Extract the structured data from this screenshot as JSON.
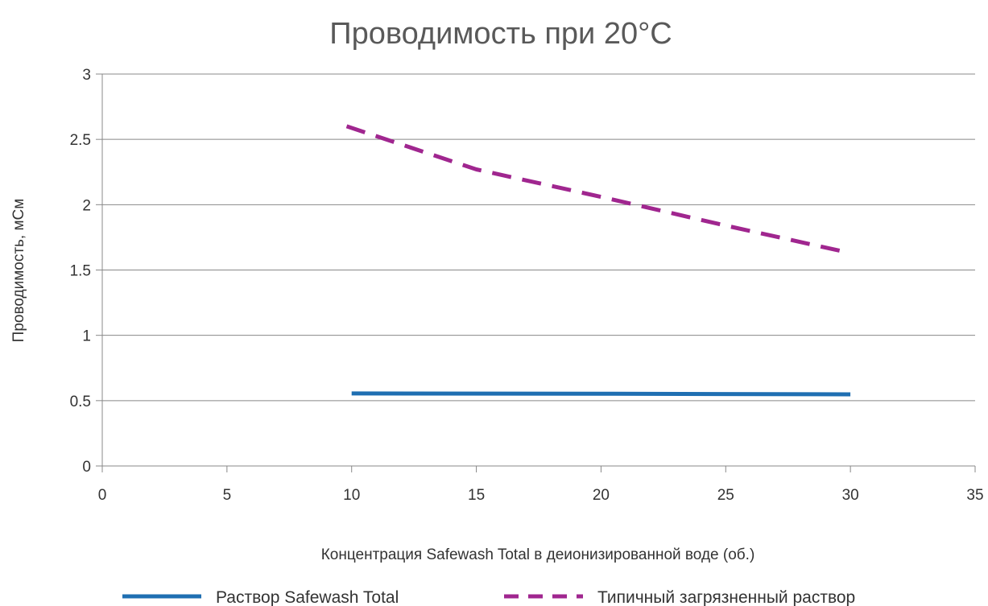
{
  "chart_data": {
    "type": "line",
    "title": "Проводимость при 20°C",
    "xlabel": "Концентрация Safewash Total в деионизированной воде (об.)",
    "ylabel": "Проводимость, мСм",
    "xlim": [
      0,
      35
    ],
    "ylim": [
      0,
      3
    ],
    "x_ticks": [
      "0",
      "5",
      "10",
      "15",
      "20",
      "25",
      "30",
      "35"
    ],
    "y_ticks": [
      "0",
      "0.5",
      "1",
      "1.5",
      "2",
      "2.5",
      "3"
    ],
    "grid": "horizontal",
    "legend_position": "bottom",
    "series": [
      {
        "name": "Раствор Safewash Total",
        "style": "solid",
        "color": "#1f6fb2",
        "points": [
          [
            10,
            0.555
          ],
          [
            20,
            0.553
          ],
          [
            30,
            0.548
          ]
        ]
      },
      {
        "name": "Типичный загрязненный раствор",
        "style": "dashed",
        "color": "#a0268f",
        "points": [
          [
            9.8,
            2.6
          ],
          [
            15,
            2.27
          ],
          [
            20,
            2.06
          ],
          [
            25,
            1.84
          ],
          [
            30,
            1.63
          ]
        ]
      }
    ]
  }
}
